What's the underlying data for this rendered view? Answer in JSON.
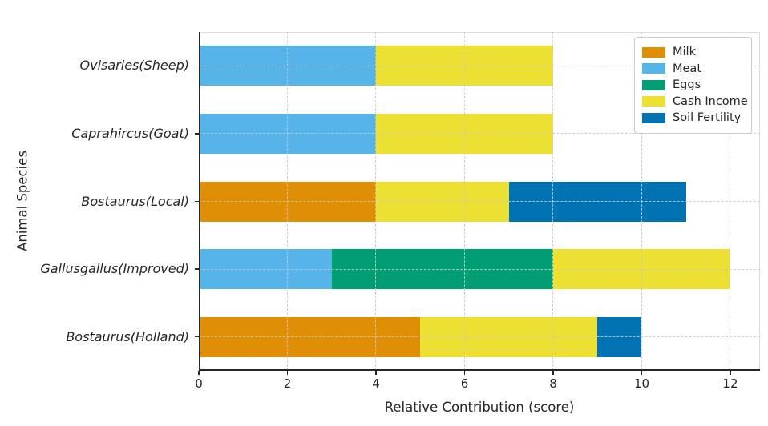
{
  "chart_data": {
    "type": "bar",
    "orientation": "horizontal",
    "stacked": true,
    "title": "",
    "xlabel": "Relative Contribution (score)",
    "ylabel": "Animal Species",
    "categories": [
      "Ovisaries(Sheep)",
      "Caprahircus(Goat)",
      "Bostaurus(Local)",
      "Gallusgallus(Improved)",
      "Bostaurus(Holland)"
    ],
    "series": [
      {
        "name": "Milk",
        "color": "#DE8F05",
        "values": [
          0,
          0,
          4,
          0,
          5
        ]
      },
      {
        "name": "Meat",
        "color": "#56B4E9",
        "values": [
          4,
          4,
          0,
          3,
          0
        ]
      },
      {
        "name": "Eggs",
        "color": "#029E73",
        "values": [
          0,
          0,
          0,
          5,
          0
        ]
      },
      {
        "name": "Cash Income",
        "color": "#ECE133",
        "values": [
          4,
          4,
          3,
          4,
          4
        ]
      },
      {
        "name": "Soil Fertility",
        "color": "#0173B2",
        "values": [
          0,
          0,
          4,
          0,
          1
        ]
      }
    ],
    "totals": [
      8,
      8,
      11,
      12,
      10
    ],
    "xticks": [
      0,
      2,
      4,
      6,
      8,
      10,
      12
    ],
    "xlim": [
      0,
      12.67
    ],
    "grid": "dashed-both-axes-over-bars",
    "legend_position": "upper right",
    "colors": {
      "axis_text": "#262626",
      "gridline": "#c8c8c8",
      "legend_border": "#cccccc",
      "background": "#ffffff"
    }
  }
}
